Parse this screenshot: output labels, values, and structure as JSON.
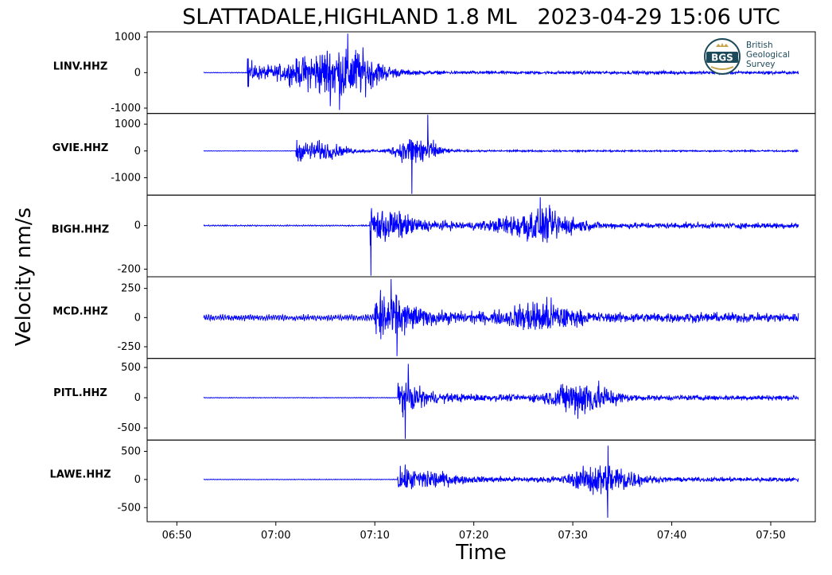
{
  "title": "SLATTADALE,HIGHLAND 1.8 ML   2023-04-29 15:06 UTC",
  "logo": {
    "abbr": "BGS",
    "line1": "British",
    "line2": "Geological",
    "line3": "Survey"
  },
  "chart_data": {
    "type": "line",
    "title": "SLATTADALE,HIGHLAND 1.8 ML   2023-04-29 15:06 UTC",
    "xlabel": "Time",
    "ylabel": "Velocity nm/s",
    "xlim_minutes": [
      407.0,
      474.5
    ],
    "x_ticks": [
      "06:50",
      "07:00",
      "07:10",
      "07:20",
      "07:30",
      "07:40",
      "07:50"
    ],
    "x_tick_minutes": [
      410,
      420,
      430,
      440,
      450,
      460,
      470
    ],
    "trace_start_minutes": 412.7,
    "trace_end_minutes": 472.8,
    "line_color": "#0000ff",
    "grid": false,
    "legend": "none",
    "panels": [
      {
        "station": "LINV.HHZ",
        "ylim": [
          -1150,
          1150
        ],
        "y_ticks": [
          1000,
          0,
          -1000
        ],
        "y_tick_labels": [
          "1000",
          "0",
          "-1000"
        ],
        "onset_minutes": 417.2,
        "onset_spike": 400,
        "pre_noise": 10,
        "bursts": [
          {
            "center": 425.5,
            "width": 4.5,
            "amp": 800
          },
          {
            "center": 427.5,
            "width": 3,
            "amp": 500
          }
        ],
        "peak_max": 1100,
        "peak_min": -1050,
        "tail_amp": 60
      },
      {
        "station": "GVIE.HHZ",
        "ylim": [
          -1650,
          1400
        ],
        "y_ticks": [
          1000,
          0,
          -1000
        ],
        "y_tick_labels": [
          "1000",
          "0",
          "-1000"
        ],
        "onset_minutes": 422.0,
        "onset_spike": 0,
        "pre_noise": 8,
        "bursts": [
          {
            "center": 424.5,
            "width": 2.5,
            "amp": 450
          },
          {
            "center": 434.3,
            "width": 2,
            "amp": 1000
          }
        ],
        "peak_max": 1350,
        "peak_min": -1600,
        "tail_amp": 40
      },
      {
        "station": "BIGH.HHZ",
        "ylim": [
          -235,
          140
        ],
        "y_ticks": [
          0,
          -200
        ],
        "y_tick_labels": [
          "0",
          "-200"
        ],
        "onset_minutes": 429.5,
        "onset_spike": 0,
        "pre_noise": 3,
        "bursts": [
          {
            "center": 431.0,
            "width": 3,
            "amp": 70
          },
          {
            "center": 446.5,
            "width": 3.5,
            "amp": 110
          }
        ],
        "peak_max": 130,
        "peak_min": -230,
        "tail_amp": 18
      },
      {
        "station": "MCD.HHZ",
        "ylim": [
          -350,
          350
        ],
        "y_ticks": [
          250,
          0,
          -250
        ],
        "y_tick_labels": [
          "250",
          "0",
          "-250"
        ],
        "onset_minutes": 430.0,
        "onset_spike": 0,
        "pre_noise": 25,
        "bursts": [
          {
            "center": 431.2,
            "width": 2.5,
            "amp": 220
          },
          {
            "center": 446.8,
            "width": 3,
            "amp": 190
          }
        ],
        "peak_max": 330,
        "peak_min": -330,
        "tail_amp": 40
      },
      {
        "station": "PITL.HHZ",
        "ylim": [
          -700,
          650
        ],
        "y_ticks": [
          500,
          0,
          -500
        ],
        "y_tick_labels": [
          "500",
          "0",
          "-500"
        ],
        "onset_minutes": 432.3,
        "onset_spike": 0,
        "pre_noise": 6,
        "bursts": [
          {
            "center": 433.0,
            "width": 2,
            "amp": 200
          },
          {
            "center": 451.0,
            "width": 3,
            "amp": 450
          }
        ],
        "peak_max": 560,
        "peak_min": -680,
        "tail_amp": 60
      },
      {
        "station": "LAWE.HHZ",
        "ylim": [
          -750,
          700
        ],
        "y_ticks": [
          500,
          0,
          -500
        ],
        "y_tick_labels": [
          "500",
          "0",
          "-500"
        ],
        "onset_minutes": 432.3,
        "onset_spike": 0,
        "pre_noise": 6,
        "bursts": [
          {
            "center": 435.0,
            "width": 2.5,
            "amp": 170
          },
          {
            "center": 453.3,
            "width": 3,
            "amp": 460
          }
        ],
        "peak_max": 600,
        "peak_min": -680,
        "tail_amp": 55
      }
    ]
  }
}
